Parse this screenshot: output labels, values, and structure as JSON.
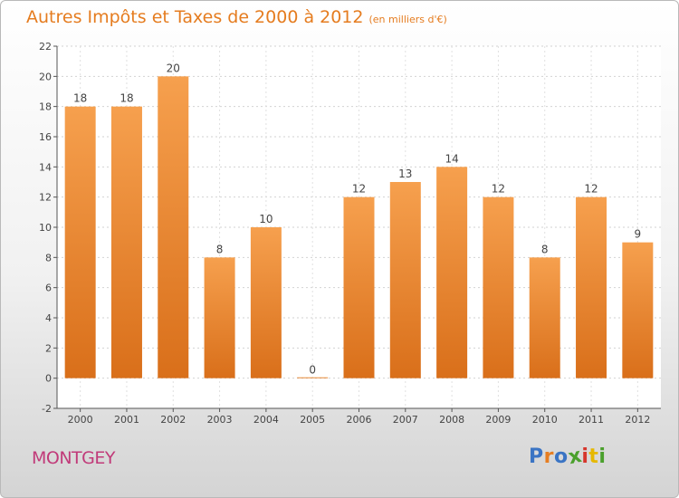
{
  "header": {
    "title": "Autres Impôts et Taxes de 2000 à 2012",
    "subtitle": "(en milliers d'€)"
  },
  "footer": {
    "commune": "MONTGEY",
    "logo_text": "Proxiti",
    "logo_colors": [
      "#3a74c4",
      "#e67e22",
      "#3a74c4",
      "#4aa02c",
      "#d6362d",
      "#e6b800",
      "#4aa02c"
    ]
  },
  "colors": {
    "bar_top": "#f6a04e",
    "bar_bottom": "#d96f1a",
    "accent": "#e57c1f",
    "commune": "#c13a79"
  },
  "chart_data": {
    "type": "bar",
    "categories": [
      "2000",
      "2001",
      "2002",
      "2003",
      "2004",
      "2005",
      "2006",
      "2007",
      "2008",
      "2009",
      "2010",
      "2011",
      "2012"
    ],
    "values": [
      18,
      18,
      20,
      8,
      10,
      0,
      12,
      13,
      14,
      12,
      8,
      12,
      9
    ],
    "data_labels": [
      "18",
      "18",
      "20",
      "8",
      "10",
      "0",
      "12",
      "13",
      "14",
      "12",
      "8",
      "12",
      "9"
    ],
    "y_ticks": [
      "-2",
      "0",
      "2",
      "4",
      "6",
      "8",
      "10",
      "12",
      "14",
      "16",
      "18",
      "20",
      "22"
    ],
    "ylim": [
      -2,
      22
    ],
    "grid": true,
    "legend": "none"
  }
}
